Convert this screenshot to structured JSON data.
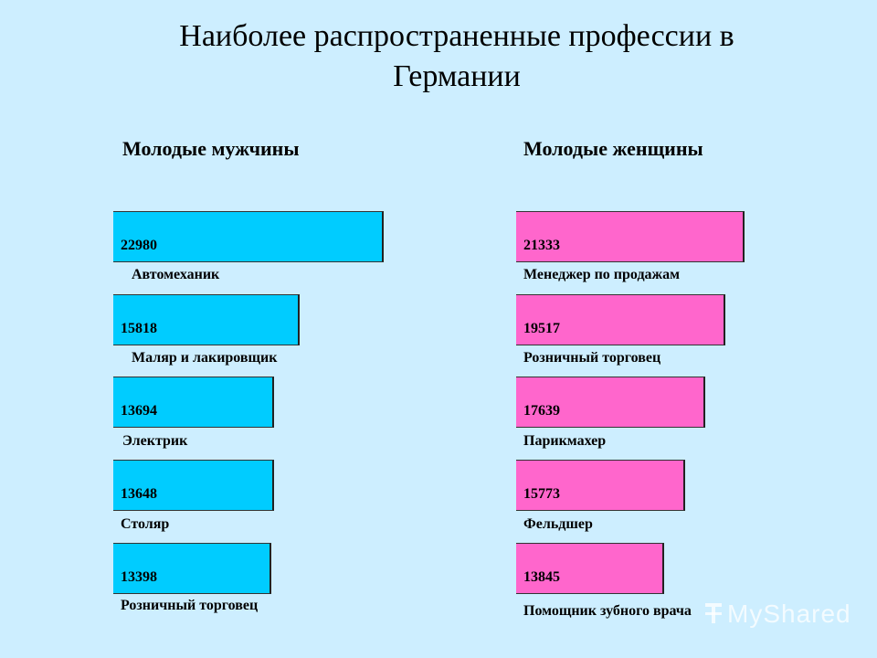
{
  "title": "Наиболее распространенные профессии в Германии",
  "watermark": "MyShared",
  "colors": {
    "background": "#cdeeff",
    "men": "#00ccff",
    "women": "#ff66cc"
  },
  "chart_data": [
    {
      "type": "bar",
      "orientation": "horizontal",
      "title": "Молодые мужчины",
      "categories": [
        "Автомеханик",
        "Маляр и лакировщик",
        "Электрик",
        "Столяр",
        "Розничный торговец"
      ],
      "values": [
        22980,
        15818,
        13694,
        13648,
        13398
      ],
      "value_labels": [
        "22980",
        "15818",
        "13694",
        "13648",
        "13398"
      ],
      "color": "#00ccff",
      "xlim": [
        0,
        22980
      ]
    },
    {
      "type": "bar",
      "orientation": "horizontal",
      "title": "Молодые женщины",
      "categories": [
        "Менеджер по продажам",
        "Розничный торговец",
        "Парикмахер",
        "Фельдшер",
        "Помощник зубного врача"
      ],
      "values": [
        21333,
        19517,
        17639,
        15773,
        13845
      ],
      "value_labels": [
        "21333",
        "19517",
        "17639",
        "15773",
        "13845"
      ],
      "color": "#ff66cc",
      "xlim": [
        0,
        22980
      ]
    }
  ]
}
